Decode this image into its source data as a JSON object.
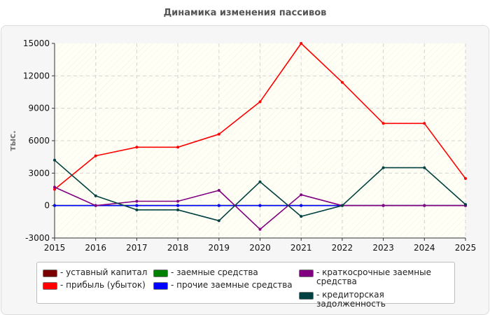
{
  "chart_data": {
    "type": "line",
    "title": "Динамика изменения пассивов",
    "ylabel": "тыс.",
    "xlabel": "",
    "x": [
      "2015",
      "2016",
      "2017",
      "2018",
      "2019",
      "2020",
      "2021",
      "2022",
      "2023",
      "2024",
      "2025"
    ],
    "ylim": [
      -3000,
      15000
    ],
    "yticks": [
      "15000",
      "12000",
      "9000",
      "6000",
      "3000",
      "0",
      "-3000"
    ],
    "grid": true,
    "legend_position": "bottom",
    "series": [
      {
        "name": "- уставный капитал",
        "color": "#7a0000",
        "values": [
          0,
          0,
          0,
          0,
          0,
          0,
          0,
          0,
          0,
          0,
          0
        ]
      },
      {
        "name": "- прибыль (убыток)",
        "color": "#ff0000",
        "values": [
          1500,
          4600,
          5400,
          5400,
          6600,
          9600,
          15000,
          11400,
          7600,
          7600,
          2500
        ]
      },
      {
        "name": "- заемные средства",
        "color": "#008000",
        "values": [
          0,
          0,
          0,
          0,
          0,
          0,
          0,
          0,
          0,
          0,
          0
        ]
      },
      {
        "name": "- прочие заемные средства",
        "color": "#0000ff",
        "values": [
          0,
          0,
          0,
          0,
          0,
          0,
          0,
          0,
          0,
          0,
          0
        ]
      },
      {
        "name": "- краткосрочные заемные средства",
        "color": "#800080",
        "values": [
          1700,
          0,
          400,
          400,
          1400,
          -2200,
          1000,
          0,
          0,
          0,
          0
        ]
      },
      {
        "name": "- кредиторская задолженность",
        "color": "#004040",
        "values": [
          4200,
          900,
          -400,
          -400,
          -1400,
          2200,
          -1000,
          0,
          3500,
          3500,
          100
        ]
      }
    ]
  }
}
